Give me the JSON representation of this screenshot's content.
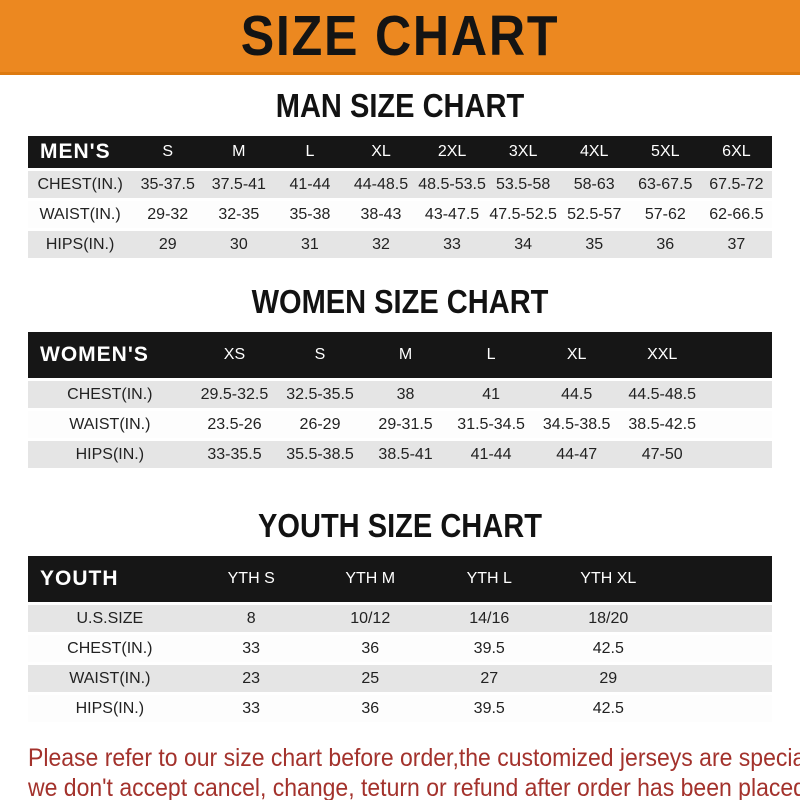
{
  "banner": {
    "title": "SIZE CHART"
  },
  "colors": {
    "banner_orange": "#ec8820",
    "banner_border_orange": "#dd7a10",
    "header_band_black": "#161616",
    "row_gray": "#e5e5e5",
    "footer_red": "#a3322c"
  },
  "sections": [
    {
      "title": "MAN SIZE CHART",
      "corner_label": "MEN'S",
      "columns": [
        "S",
        "M",
        "L",
        "XL",
        "2XL",
        "3XL",
        "4XL",
        "5XL",
        "6XL"
      ],
      "rows": [
        {
          "label": "CHEST(IN.)",
          "values": [
            "35-37.5",
            "37.5-41",
            "41-44",
            "44-48.5",
            "48.5-53.5",
            "53.5-58",
            "58-63",
            "63-67.5",
            "67.5-72"
          ]
        },
        {
          "label": "WAIST(IN.)",
          "values": [
            "29-32",
            "32-35",
            "35-38",
            "38-43",
            "43-47.5",
            "47.5-52.5",
            "52.5-57",
            "57-62",
            "62-66.5"
          ]
        },
        {
          "label": "HIPS(IN.)",
          "values": [
            "29",
            "30",
            "31",
            "32",
            "33",
            "34",
            "35",
            "36",
            "37"
          ]
        }
      ]
    },
    {
      "title": "WOMEN SIZE CHART",
      "corner_label": "WOMEN'S",
      "columns": [
        "XS",
        "S",
        "M",
        "L",
        "XL",
        "XXL"
      ],
      "rows": [
        {
          "label": "CHEST(IN.)",
          "values": [
            "29.5-32.5",
            "32.5-35.5",
            "38",
            "41",
            "44.5",
            "44.5-48.5"
          ]
        },
        {
          "label": "WAIST(IN.)",
          "values": [
            "23.5-26",
            "26-29",
            "29-31.5",
            "31.5-34.5",
            "34.5-38.5",
            "38.5-42.5"
          ]
        },
        {
          "label": "HIPS(IN.)",
          "values": [
            "33-35.5",
            "35.5-38.5",
            "38.5-41",
            "41-44",
            "44-47",
            "47-50"
          ]
        }
      ]
    },
    {
      "title": "YOUTH SIZE CHART",
      "corner_label": "YOUTH",
      "columns": [
        "YTH S",
        "YTH M",
        "YTH L",
        "YTH XL"
      ],
      "rows": [
        {
          "label": "U.S.SIZE",
          "values": [
            "8",
            "10/12",
            "14/16",
            "18/20"
          ]
        },
        {
          "label": "CHEST(IN.)",
          "values": [
            "33",
            "36",
            "39.5",
            "42.5"
          ]
        },
        {
          "label": "WAIST(IN.)",
          "values": [
            "23",
            "25",
            "27",
            "29"
          ]
        },
        {
          "label": "HIPS(IN.)",
          "values": [
            "33",
            "36",
            "39.5",
            "42.5"
          ]
        }
      ]
    }
  ],
  "footer": {
    "line1": "Please refer to our size chart before order,the customized jerseys are special products,",
    "line2": "we don't accept cancel, change, teturn or refund after order has been placed!"
  }
}
